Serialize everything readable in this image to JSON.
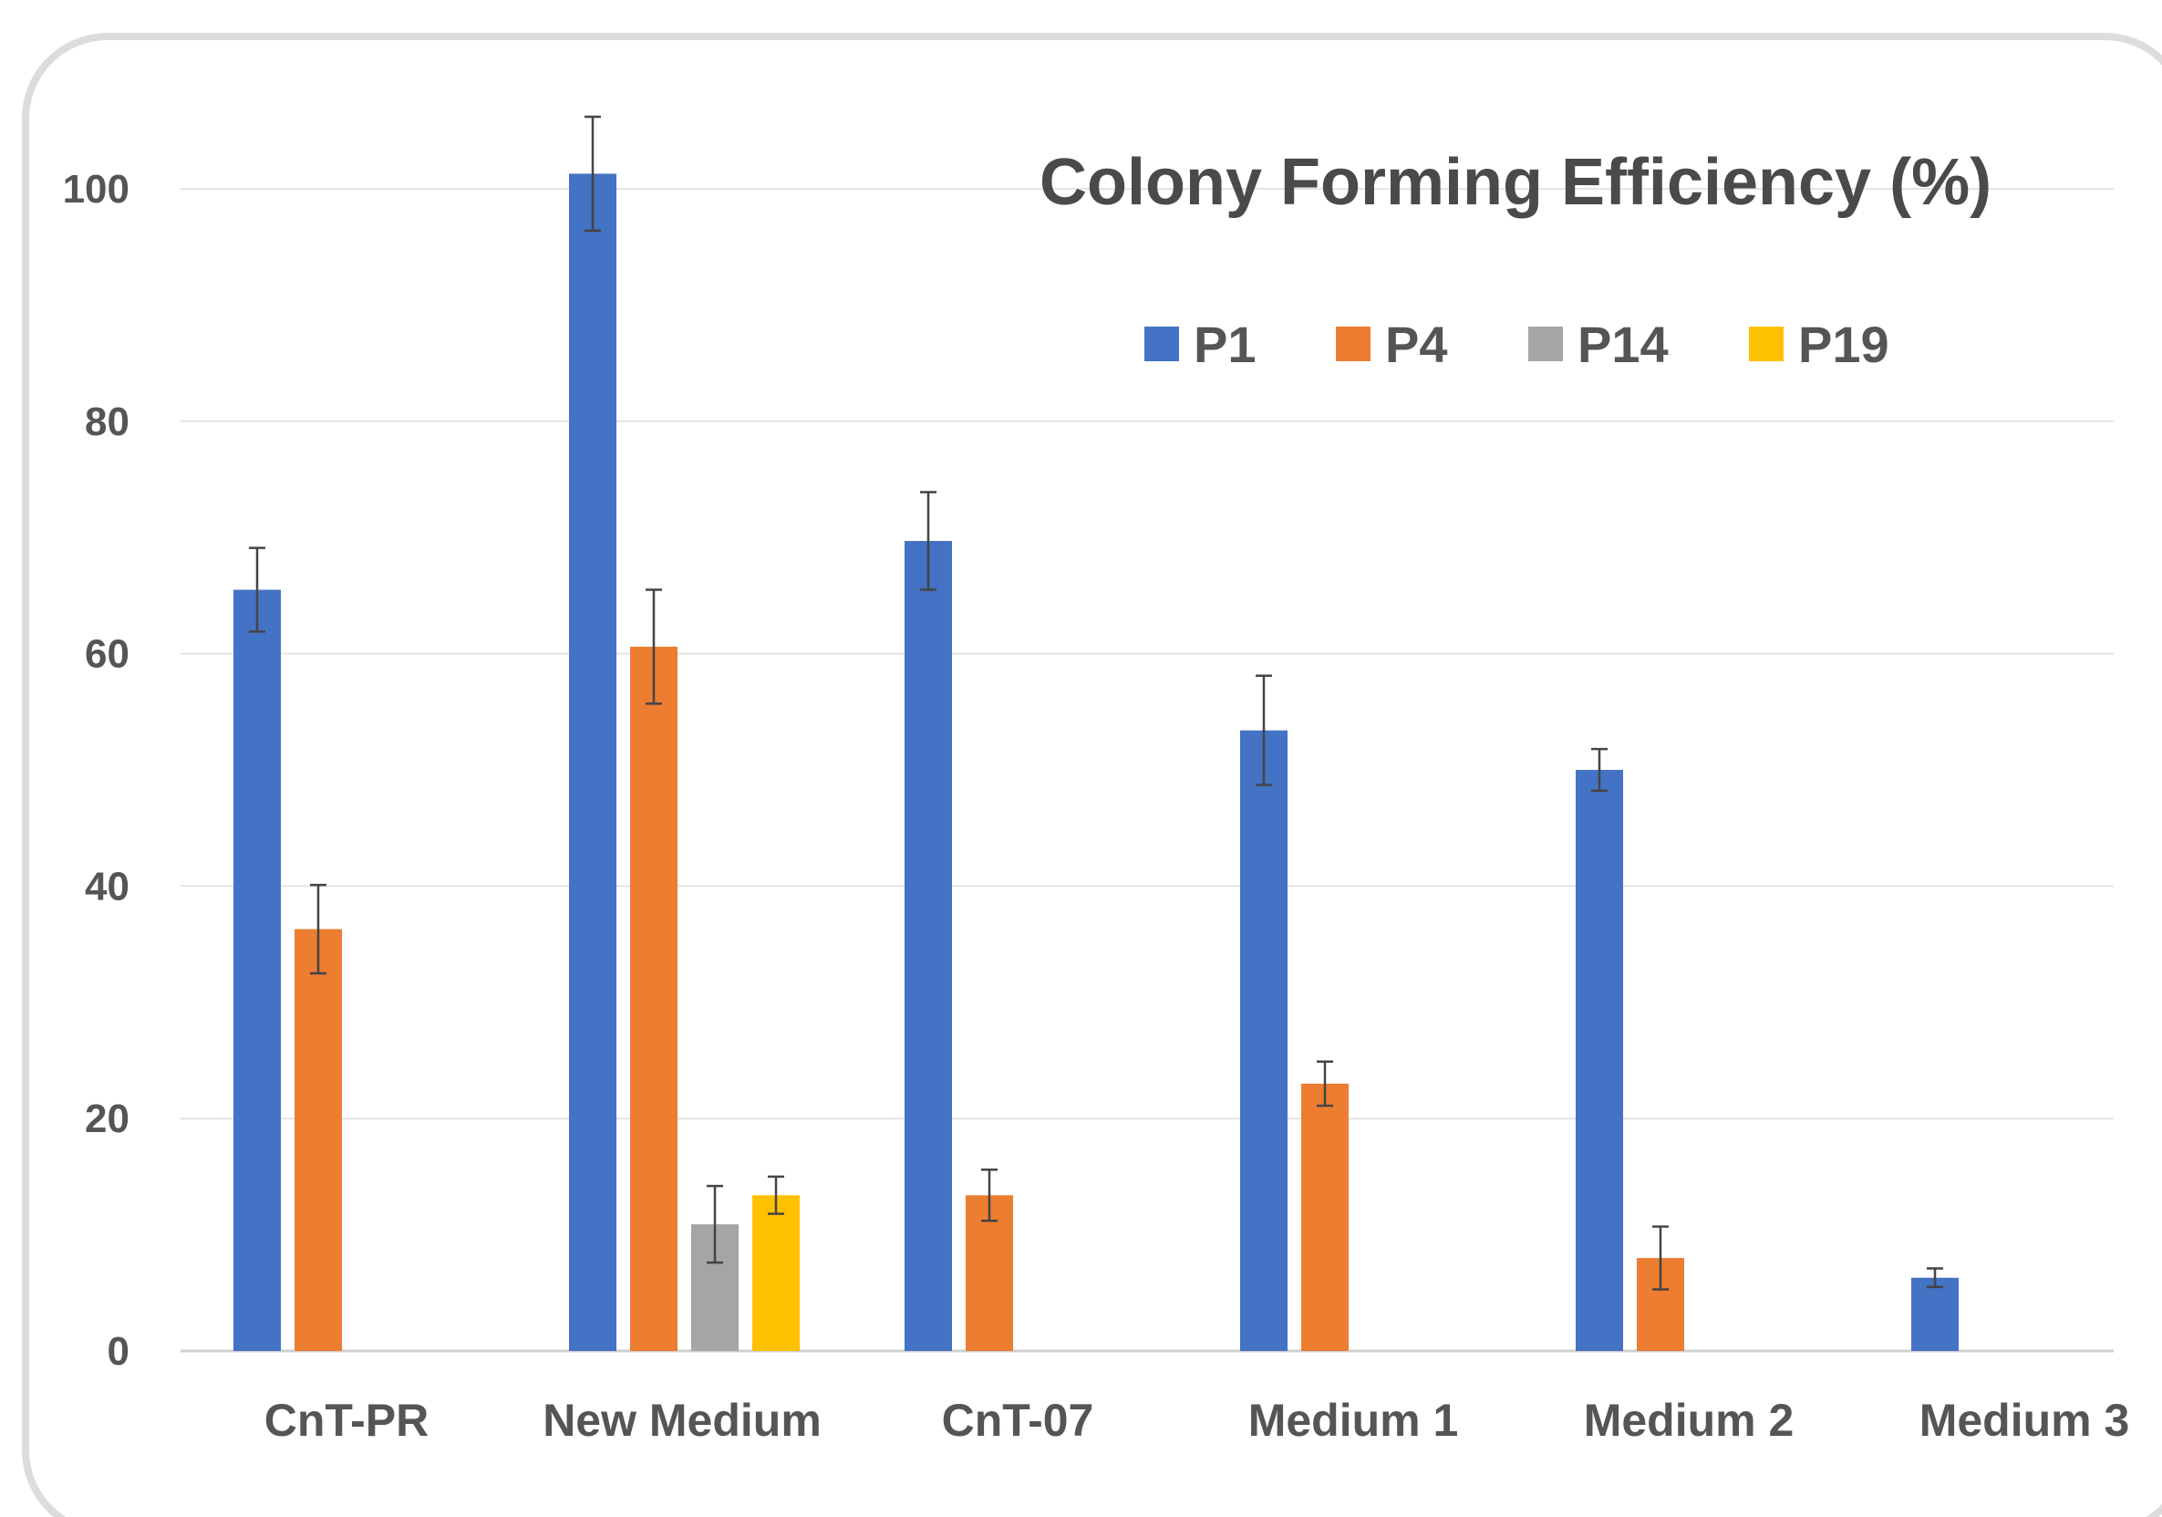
{
  "chart_data": {
    "type": "bar",
    "title": "Colony Forming Efficiency (%)",
    "xlabel": "",
    "ylabel": "",
    "ylim": [
      0,
      100
    ],
    "yticks": [
      0,
      20,
      40,
      60,
      80,
      100
    ],
    "grid": true,
    "legend_position": "top-right",
    "categories": [
      "CnT-PR",
      "New Medium",
      "CnT-07",
      "Medium 1",
      "Medium 2",
      "Medium 3"
    ],
    "series": [
      {
        "name": "P1",
        "color": "#4472c4",
        "values": [
          65.5,
          101.3,
          69.7,
          53.4,
          50.0,
          6.3
        ],
        "errors": [
          3.6,
          4.9,
          4.2,
          4.7,
          1.8,
          0.8
        ]
      },
      {
        "name": "P4",
        "color": "#ed7d31",
        "values": [
          36.3,
          60.6,
          13.4,
          23.0,
          8.0,
          null
        ],
        "errors": [
          3.8,
          4.9,
          2.2,
          1.9,
          2.7,
          null
        ]
      },
      {
        "name": "P14",
        "color": "#a5a5a5",
        "values": [
          null,
          10.9,
          null,
          null,
          null,
          null
        ],
        "errors": [
          null,
          3.3,
          null,
          null,
          null,
          null
        ]
      },
      {
        "name": "P19",
        "color": "#ffc000",
        "values": [
          null,
          13.4,
          null,
          null,
          null,
          null
        ],
        "errors": [
          null,
          1.6,
          null,
          null,
          null,
          null
        ]
      }
    ]
  }
}
